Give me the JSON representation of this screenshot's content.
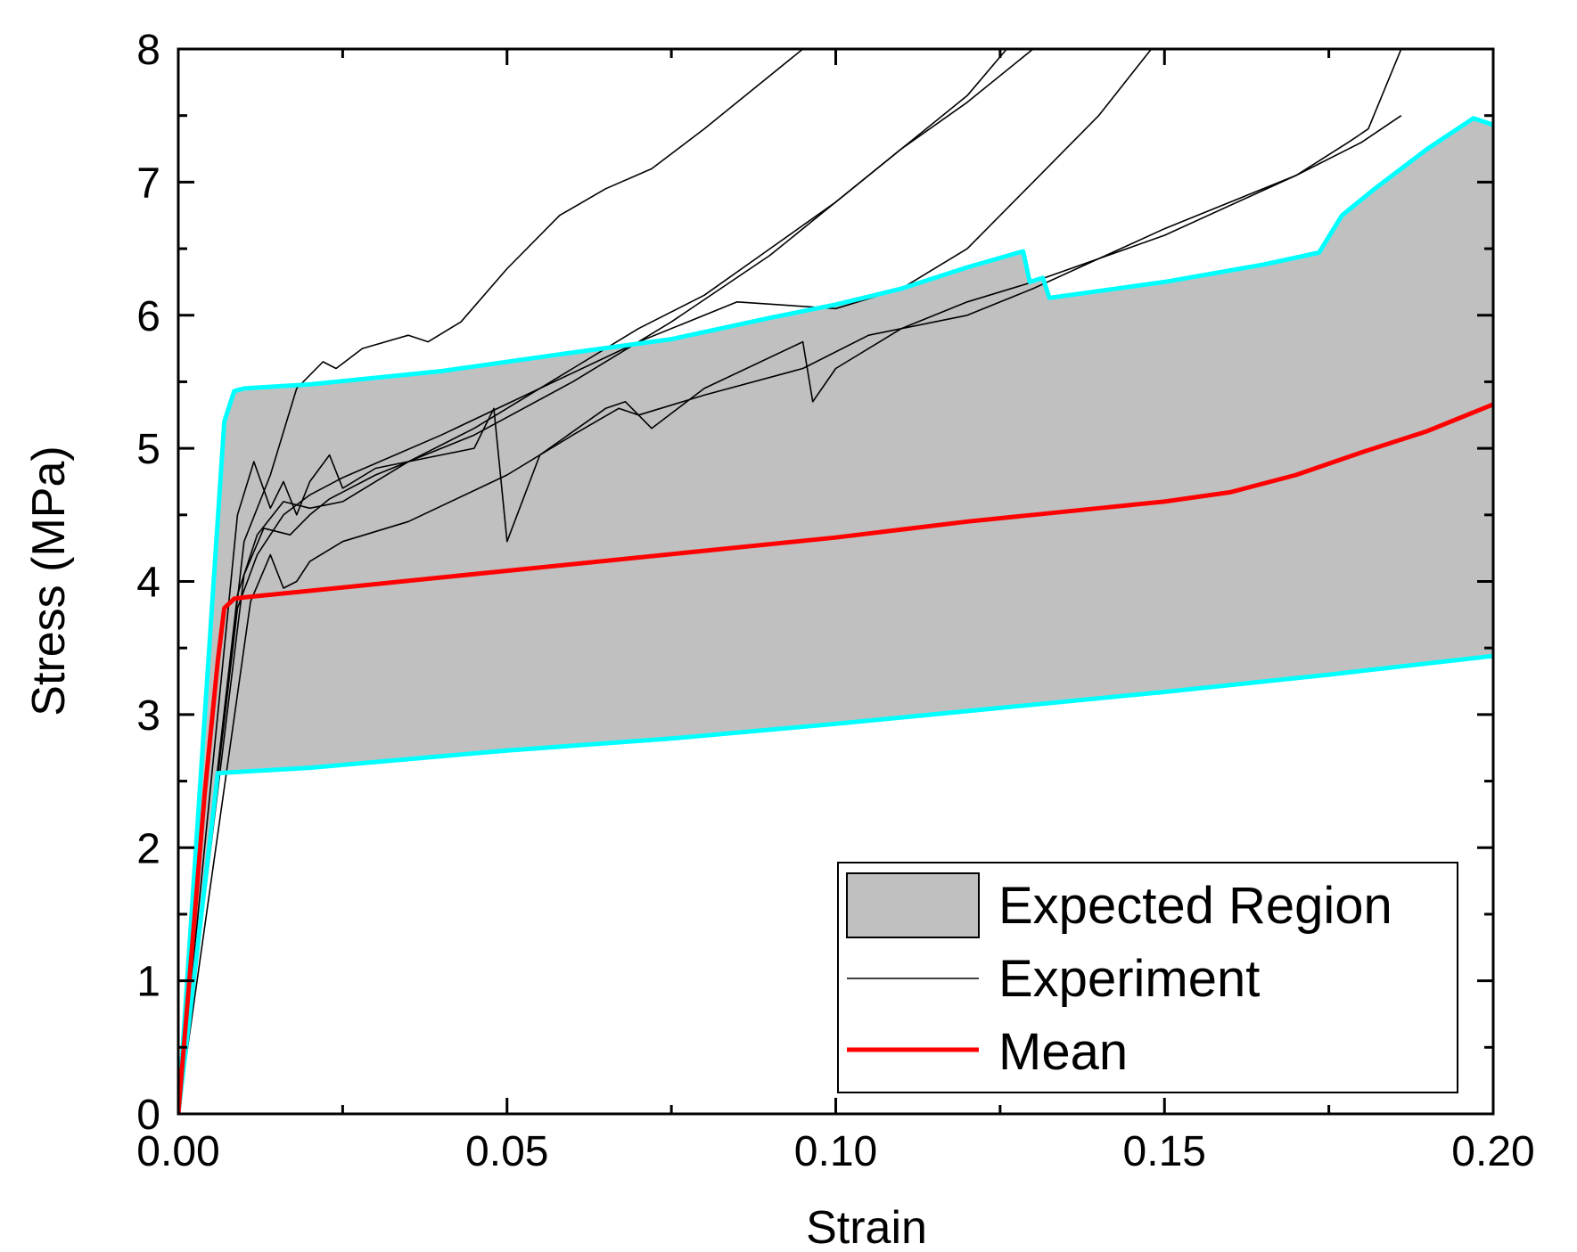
{
  "chart_data": {
    "type": "line",
    "title": "",
    "xlabel": "Strain",
    "ylabel": "Stress (MPa)",
    "xlim": [
      0,
      0.2
    ],
    "ylim": [
      0,
      8
    ],
    "xticks": [
      0,
      0.05,
      0.1,
      0.15,
      0.2
    ],
    "xtick_labels": [
      "0.00",
      "0.05",
      "0.10",
      "0.15",
      "0.20"
    ],
    "yticks": [
      0,
      1,
      2,
      3,
      4,
      5,
      6,
      7,
      8
    ],
    "ytick_labels": [
      "0",
      "1",
      "2",
      "3",
      "4",
      "5",
      "6",
      "7",
      "8"
    ],
    "grid": false,
    "legend_position": "bottom-right",
    "colors": {
      "region_fill": "#c0c0c0",
      "region_border": "#00ffff",
      "experiment": "#000000",
      "mean": "#ff0000"
    },
    "legend": [
      {
        "key": "region",
        "label": "Expected Region"
      },
      {
        "key": "experiment",
        "label": "Experiment"
      },
      {
        "key": "mean",
        "label": "Mean"
      }
    ],
    "expected_region": {
      "upper": [
        [
          0,
          0
        ],
        [
          0.007,
          5.2
        ],
        [
          0.0085,
          5.43
        ],
        [
          0.01,
          5.45
        ],
        [
          0.02,
          5.48
        ],
        [
          0.04,
          5.58
        ],
        [
          0.06,
          5.72
        ],
        [
          0.075,
          5.82
        ],
        [
          0.09,
          5.98
        ],
        [
          0.1,
          6.08
        ],
        [
          0.11,
          6.2
        ],
        [
          0.12,
          6.36
        ],
        [
          0.1285,
          6.48
        ],
        [
          0.1295,
          6.25
        ],
        [
          0.1315,
          6.28
        ],
        [
          0.1325,
          6.13
        ],
        [
          0.15,
          6.25
        ],
        [
          0.165,
          6.38
        ],
        [
          0.1735,
          6.47
        ],
        [
          0.177,
          6.75
        ],
        [
          0.182,
          6.95
        ],
        [
          0.19,
          7.25
        ],
        [
          0.197,
          7.48
        ],
        [
          0.2,
          7.43
        ]
      ],
      "lower": [
        [
          0,
          0
        ],
        [
          0.006,
          2.56
        ],
        [
          0.02,
          2.6
        ],
        [
          0.05,
          2.73
        ],
        [
          0.075,
          2.82
        ],
        [
          0.1,
          2.93
        ],
        [
          0.125,
          3.05
        ],
        [
          0.15,
          3.17
        ],
        [
          0.175,
          3.3
        ],
        [
          0.2,
          3.44
        ]
      ]
    },
    "mean": [
      [
        0,
        0
      ],
      [
        0.002,
        1.2
      ],
      [
        0.004,
        2.4
      ],
      [
        0.006,
        3.4
      ],
      [
        0.007,
        3.8
      ],
      [
        0.0085,
        3.87
      ],
      [
        0.01,
        3.88
      ],
      [
        0.02,
        3.93
      ],
      [
        0.04,
        4.03
      ],
      [
        0.06,
        4.13
      ],
      [
        0.08,
        4.23
      ],
      [
        0.1,
        4.33
      ],
      [
        0.12,
        4.45
      ],
      [
        0.13,
        4.5
      ],
      [
        0.14,
        4.55
      ],
      [
        0.15,
        4.6
      ],
      [
        0.16,
        4.67
      ],
      [
        0.17,
        4.8
      ],
      [
        0.18,
        4.97
      ],
      [
        0.19,
        5.13
      ],
      [
        0.2,
        5.33
      ]
    ],
    "series": [
      {
        "name": "Experiment 1",
        "points": [
          [
            0,
            0
          ],
          [
            0.009,
            4.5
          ],
          [
            0.0115,
            4.9
          ],
          [
            0.014,
            4.55
          ],
          [
            0.016,
            4.75
          ],
          [
            0.018,
            4.5
          ],
          [
            0.02,
            4.75
          ],
          [
            0.023,
            4.95
          ],
          [
            0.025,
            4.7
          ],
          [
            0.03,
            4.85
          ],
          [
            0.045,
            5.0
          ],
          [
            0.048,
            5.3
          ],
          [
            0.05,
            4.3
          ],
          [
            0.055,
            4.95
          ],
          [
            0.065,
            5.3
          ],
          [
            0.068,
            5.35
          ],
          [
            0.072,
            5.15
          ],
          [
            0.08,
            5.45
          ],
          [
            0.095,
            5.8
          ],
          [
            0.0965,
            5.35
          ],
          [
            0.1,
            5.6
          ],
          [
            0.11,
            5.9
          ],
          [
            0.12,
            6.1
          ],
          [
            0.13,
            6.25
          ],
          [
            0.15,
            6.6
          ],
          [
            0.17,
            7.05
          ],
          [
            0.178,
            7.3
          ],
          [
            0.181,
            7.4
          ],
          [
            0.186,
            8.0
          ]
        ]
      },
      {
        "name": "Experiment 2",
        "points": [
          [
            0,
            0
          ],
          [
            0.01,
            4.3
          ],
          [
            0.014,
            4.8
          ],
          [
            0.018,
            5.45
          ],
          [
            0.022,
            5.65
          ],
          [
            0.024,
            5.6
          ],
          [
            0.028,
            5.75
          ],
          [
            0.035,
            5.85
          ],
          [
            0.038,
            5.8
          ],
          [
            0.043,
            5.95
          ],
          [
            0.05,
            6.35
          ],
          [
            0.058,
            6.75
          ],
          [
            0.065,
            6.95
          ],
          [
            0.072,
            7.1
          ],
          [
            0.08,
            7.4
          ],
          [
            0.095,
            8.0
          ]
        ]
      },
      {
        "name": "Experiment 3",
        "points": [
          [
            0,
            0
          ],
          [
            0.009,
            3.9
          ],
          [
            0.012,
            4.35
          ],
          [
            0.016,
            4.6
          ],
          [
            0.02,
            4.55
          ],
          [
            0.025,
            4.6
          ],
          [
            0.035,
            4.9
          ],
          [
            0.045,
            5.15
          ],
          [
            0.06,
            5.6
          ],
          [
            0.07,
            5.9
          ],
          [
            0.08,
            6.15
          ],
          [
            0.09,
            6.5
          ],
          [
            0.1,
            6.85
          ],
          [
            0.11,
            7.25
          ],
          [
            0.12,
            7.65
          ],
          [
            0.126,
            8.0
          ]
        ]
      },
      {
        "name": "Experiment 4",
        "points": [
          [
            0,
            0
          ],
          [
            0.01,
            4.05
          ],
          [
            0.013,
            4.4
          ],
          [
            0.017,
            4.35
          ],
          [
            0.02,
            4.5
          ],
          [
            0.023,
            4.62
          ],
          [
            0.03,
            4.8
          ],
          [
            0.045,
            5.1
          ],
          [
            0.06,
            5.5
          ],
          [
            0.075,
            5.95
          ],
          [
            0.09,
            6.45
          ],
          [
            0.1,
            6.85
          ],
          [
            0.11,
            7.25
          ],
          [
            0.12,
            7.6
          ],
          [
            0.13,
            8.0
          ]
        ]
      },
      {
        "name": "Experiment 5",
        "points": [
          [
            0,
            0
          ],
          [
            0.009,
            3.8
          ],
          [
            0.012,
            4.2
          ],
          [
            0.016,
            4.5
          ],
          [
            0.02,
            4.65
          ],
          [
            0.025,
            4.78
          ],
          [
            0.04,
            5.1
          ],
          [
            0.055,
            5.45
          ],
          [
            0.07,
            5.8
          ],
          [
            0.085,
            6.1
          ],
          [
            0.1,
            6.05
          ],
          [
            0.11,
            6.2
          ],
          [
            0.12,
            6.5
          ],
          [
            0.13,
            7.0
          ],
          [
            0.14,
            7.5
          ],
          [
            0.148,
            8.0
          ]
        ]
      },
      {
        "name": "Experiment 6",
        "points": [
          [
            0,
            0
          ],
          [
            0.011,
            3.85
          ],
          [
            0.014,
            4.2
          ],
          [
            0.016,
            3.95
          ],
          [
            0.018,
            4.0
          ],
          [
            0.02,
            4.15
          ],
          [
            0.025,
            4.3
          ],
          [
            0.035,
            4.45
          ],
          [
            0.05,
            4.8
          ],
          [
            0.06,
            5.1
          ],
          [
            0.067,
            5.3
          ],
          [
            0.07,
            5.25
          ],
          [
            0.08,
            5.4
          ],
          [
            0.095,
            5.6
          ],
          [
            0.105,
            5.85
          ],
          [
            0.12,
            6.0
          ],
          [
            0.13,
            6.2
          ],
          [
            0.15,
            6.65
          ],
          [
            0.17,
            7.05
          ],
          [
            0.18,
            7.3
          ],
          [
            0.186,
            7.5
          ]
        ]
      }
    ]
  }
}
